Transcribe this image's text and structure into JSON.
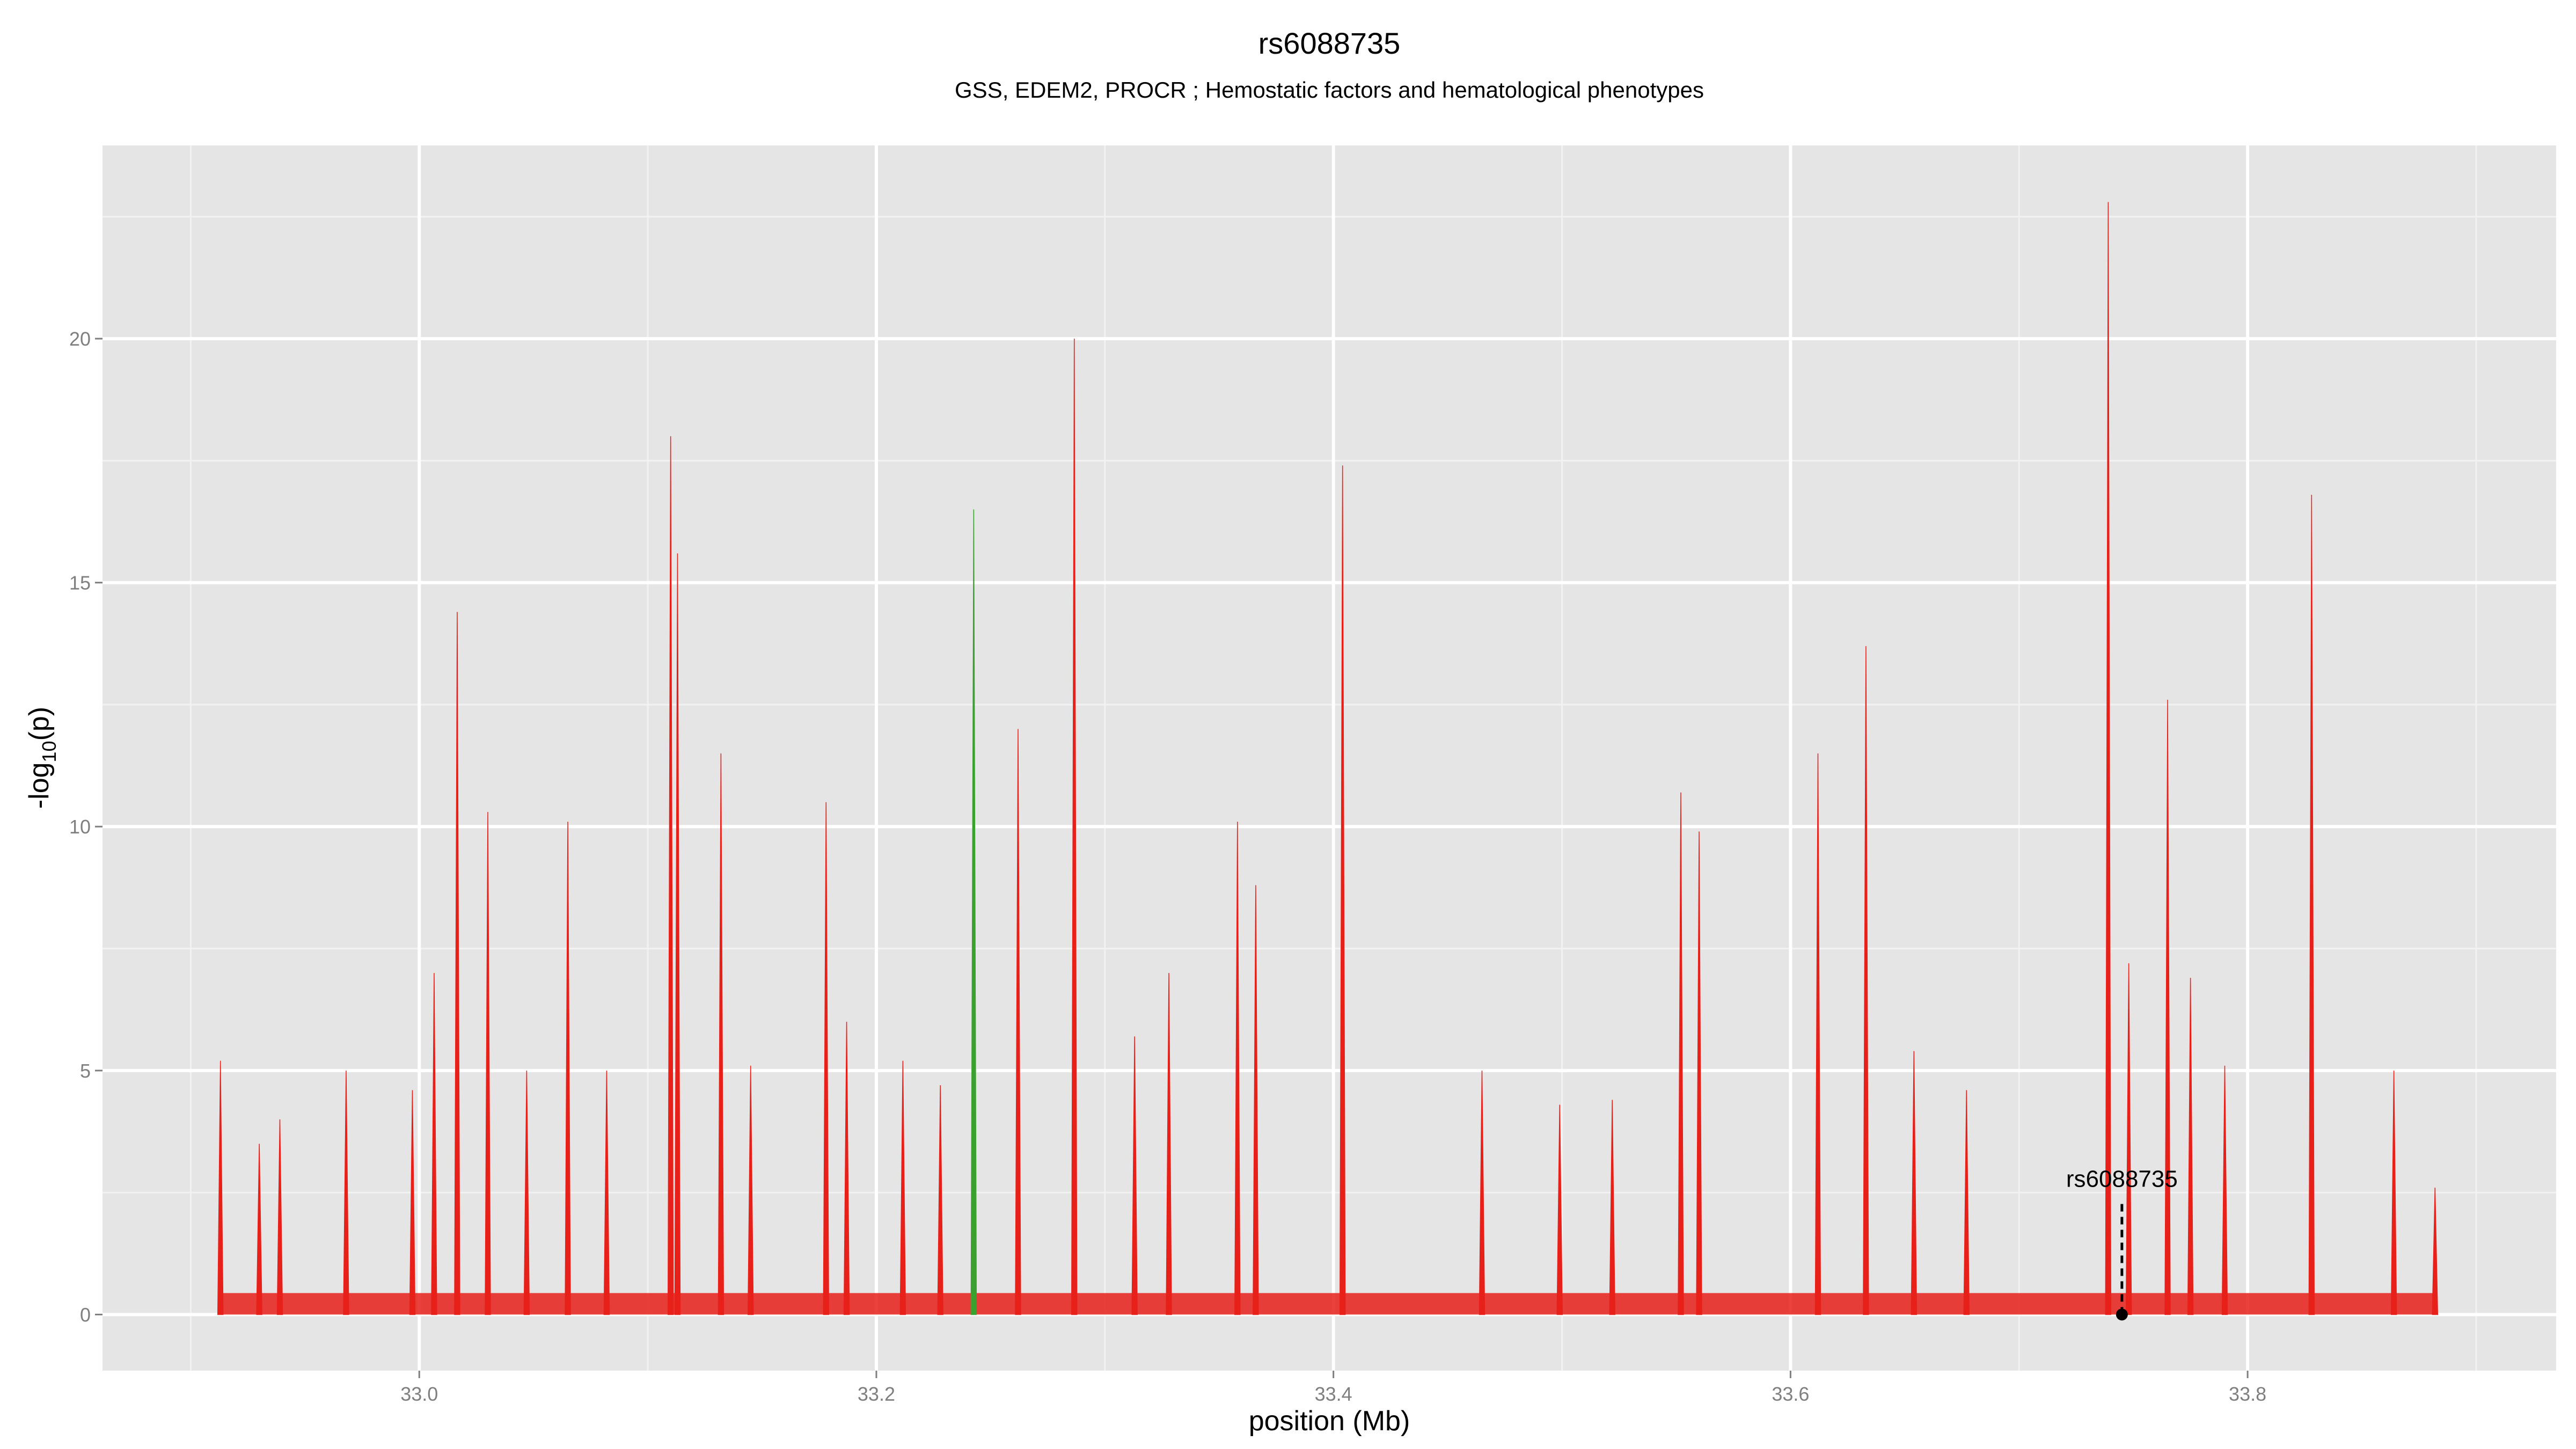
{
  "chart_data": {
    "type": "spike",
    "title": "rs6088735",
    "subtitle": "GSS, EDEM2, PROCR ; Hemostatic factors and hematological phenotypes",
    "x_label": "position (Mb)",
    "y_label": {
      "main": "-log",
      "sub": "10",
      "tail": "(p)"
    },
    "xlim": [
      32.8614,
      33.935
    ],
    "ylim": [
      -1.15,
      23.96
    ],
    "xticks": [
      {
        "value": 33,
        "label": "33.0"
      },
      {
        "value": 33.2,
        "label": "33.2"
      },
      {
        "value": 33.4,
        "label": "33.4"
      },
      {
        "value": 33.6,
        "label": "33.6"
      },
      {
        "value": 33.8,
        "label": "33.8"
      }
    ],
    "xminor": [
      32.9,
      33.1,
      33.3,
      33.5,
      33.7,
      33.9
    ],
    "yticks": [
      0,
      5,
      10,
      15,
      20
    ],
    "yminor": [
      2.5,
      7.5,
      12.5,
      17.5,
      22.5
    ],
    "grid": true,
    "series": [
      {
        "name": "red",
        "color": "#e8201a",
        "x": [
          32.913,
          32.93,
          32.939,
          32.968,
          32.997,
          33.0065,
          33.0166,
          33.03,
          33.047,
          33.065,
          33.082,
          33.11,
          33.113,
          33.132,
          33.145,
          33.178,
          33.187,
          33.2116,
          33.228,
          33.262,
          33.2866,
          33.313,
          33.328,
          33.358,
          33.366,
          33.404,
          33.465,
          33.499,
          33.522,
          33.552,
          33.56,
          33.612,
          33.633,
          33.654,
          33.677,
          33.739,
          33.748,
          33.765,
          33.775,
          33.79,
          33.828,
          33.864,
          33.882
        ],
        "values": [
          5.2,
          3.5,
          4.0,
          5.0,
          4.6,
          7.0,
          14.4,
          10.3,
          5.0,
          10.1,
          5.0,
          18.0,
          15.6,
          11.5,
          5.1,
          10.5,
          6.0,
          5.2,
          4.7,
          12.0,
          20.0,
          5.7,
          7.0,
          10.1,
          8.8,
          17.4,
          5.0,
          4.3,
          4.4,
          10.7,
          9.9,
          11.5,
          13.7,
          5.4,
          4.6,
          22.8,
          7.2,
          12.6,
          6.9,
          5.1,
          16.8,
          5.0,
          2.6
        ]
      },
      {
        "name": "green",
        "color": "#3aa02e",
        "x": [
          33.2426
        ],
        "values": [
          16.5
        ]
      }
    ],
    "annotation": {
      "label": "rs6088735",
      "x": 33.745,
      "y": 0
    }
  }
}
